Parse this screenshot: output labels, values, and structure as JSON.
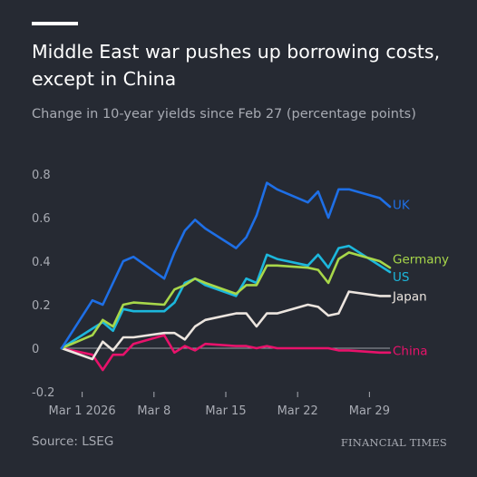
{
  "header": {
    "title": "Middle East war pushes up borrowing costs, except in China",
    "subtitle": "Change in 10-year yields since Feb 27 (percentage points)"
  },
  "footer": {
    "source": "Source: LSEG",
    "publisher": "FINANCIAL TIMES"
  },
  "chart_data": {
    "type": "line",
    "title": "Middle East war pushes up borrowing costs, except in China",
    "subtitle": "Change in 10-year yields since Feb 27 (percentage points)",
    "xlabel": "",
    "ylabel": "",
    "ylim": [
      -0.2,
      0.8
    ],
    "yticks": [
      -0.2,
      0,
      0.2,
      0.4,
      0.6,
      0.8
    ],
    "ytick_labels": [
      "-0.2",
      "0",
      "0.2",
      "0.4",
      "0.6",
      "0.8"
    ],
    "xlim": [
      "2026-02-27",
      "2026-03-31"
    ],
    "xticks": [
      "2026-03-01",
      "2026-03-08",
      "2026-03-15",
      "2026-03-22",
      "2026-03-29"
    ],
    "xtick_labels": [
      "Mar 1 2026",
      "Mar 8",
      "Mar 15",
      "Mar 22",
      "Mar 29"
    ],
    "zero_line": true,
    "grid": false,
    "legend": "direct labels at line ends",
    "x": [
      "2026-02-27",
      "2026-03-02",
      "2026-03-03",
      "2026-03-04",
      "2026-03-05",
      "2026-03-06",
      "2026-03-09",
      "2026-03-10",
      "2026-03-11",
      "2026-03-12",
      "2026-03-13",
      "2026-03-16",
      "2026-03-17",
      "2026-03-18",
      "2026-03-19",
      "2026-03-20",
      "2026-03-23",
      "2026-03-24",
      "2026-03-25",
      "2026-03-26",
      "2026-03-27",
      "2026-03-30",
      "2026-03-31"
    ],
    "series": [
      {
        "name": "UK",
        "color": "#1e6fe6",
        "values": [
          0,
          0.22,
          0.2,
          0.3,
          0.4,
          0.42,
          0.32,
          0.44,
          0.54,
          0.59,
          0.55,
          0.46,
          0.51,
          0.61,
          0.76,
          0.73,
          0.67,
          0.72,
          0.6,
          0.73,
          0.73,
          0.69,
          0.65
        ]
      },
      {
        "name": "Germany",
        "color": "#a8d74a",
        "values": [
          0,
          0.06,
          0.13,
          0.1,
          0.2,
          0.21,
          0.2,
          0.27,
          0.29,
          0.32,
          0.3,
          0.25,
          0.29,
          0.29,
          0.38,
          0.38,
          0.37,
          0.36,
          0.3,
          0.41,
          0.44,
          0.4,
          0.37
        ]
      },
      {
        "name": "US",
        "color": "#1cb7dc",
        "values": [
          0,
          0.09,
          0.12,
          0.08,
          0.18,
          0.17,
          0.17,
          0.21,
          0.3,
          0.32,
          0.29,
          0.24,
          0.32,
          0.3,
          0.43,
          0.41,
          0.38,
          0.43,
          0.37,
          0.46,
          0.47,
          0.38,
          0.35
        ]
      },
      {
        "name": "Japan",
        "color": "#ece5df",
        "values": [
          0,
          -0.05,
          0.03,
          -0.01,
          0.05,
          0.05,
          0.07,
          0.07,
          0.04,
          0.1,
          0.13,
          0.16,
          0.16,
          0.1,
          0.16,
          0.16,
          0.2,
          0.19,
          0.15,
          0.16,
          0.26,
          0.24,
          0.24
        ]
      },
      {
        "name": "China",
        "color": "#e8126b",
        "values": [
          0,
          -0.03,
          -0.1,
          -0.03,
          -0.03,
          0.02,
          0.06,
          -0.02,
          0.01,
          -0.01,
          0.02,
          0.01,
          0.01,
          0.0,
          0.01,
          0.0,
          0.0,
          0.0,
          0.0,
          -0.01,
          -0.01,
          -0.02,
          -0.02
        ]
      }
    ]
  }
}
